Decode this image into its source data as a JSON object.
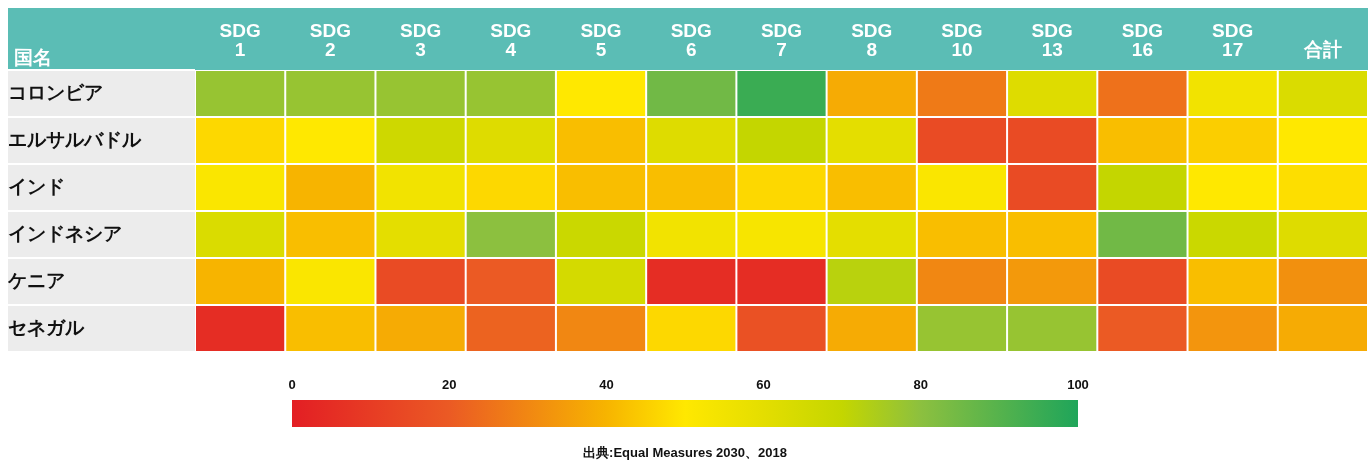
{
  "chart_data": {
    "type": "heatmap",
    "ylabel": "国名",
    "categories": [
      "SDG 1",
      "SDG 2",
      "SDG 3",
      "SDG 4",
      "SDG 5",
      "SDG 6",
      "SDG 7",
      "SDG 8",
      "SDG 10",
      "SDG 13",
      "SDG 16",
      "SDG 17",
      "合計"
    ],
    "y_categories": [
      "コロンビア",
      "エルサルバドル",
      "インド",
      "インドネシア",
      "ケニア",
      "セネガル"
    ],
    "cells": [
      [
        78,
        78,
        78,
        78,
        50,
        85,
        95,
        38,
        27,
        62,
        25,
        55,
        63
      ],
      [
        47,
        50,
        67,
        62,
        42,
        62,
        70,
        60,
        15,
        15,
        42,
        45,
        50
      ],
      [
        52,
        40,
        55,
        47,
        42,
        42,
        47,
        42,
        52,
        15,
        70,
        50,
        48
      ],
      [
        63,
        42,
        60,
        80,
        68,
        55,
        53,
        60,
        42,
        42,
        85,
        68,
        62
      ],
      [
        40,
        52,
        15,
        20,
        65,
        5,
        5,
        72,
        30,
        34,
        15,
        42,
        32
      ],
      [
        5,
        42,
        38,
        22,
        30,
        47,
        17,
        38,
        78,
        78,
        20,
        33,
        38
      ]
    ],
    "clim": [
      0,
      100
    ],
    "cticks": [
      0,
      20,
      40,
      60,
      80,
      100
    ],
    "annotations": [
      "出典:Equal Measures 2030、2018"
    ]
  }
}
